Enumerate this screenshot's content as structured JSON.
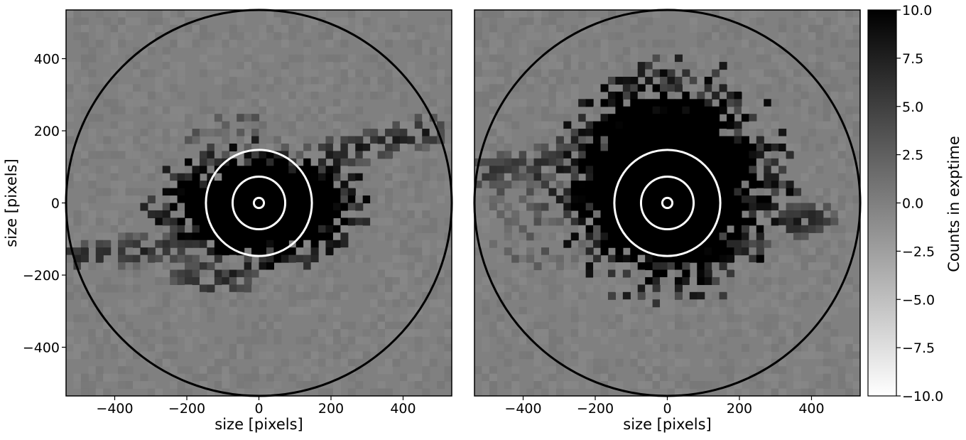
{
  "chart_data": {
    "type": "heatmap",
    "colormap": "gray_r",
    "panels": [
      {
        "xlabel": "size [pixels]",
        "ylabel": "size [pixels]",
        "xlim": [
          -535,
          535
        ],
        "ylim": [
          -535,
          535
        ],
        "xticks": [
          -400,
          -200,
          0,
          200,
          400
        ],
        "yticks": [
          -400,
          -200,
          0,
          200,
          400
        ],
        "xtick_labels": [
          "−400",
          "−200",
          "0",
          "200",
          "400"
        ],
        "ytick_labels": [
          "−400",
          "−200",
          "0",
          "200",
          "400"
        ],
        "background_value": 0,
        "saturated_core": {
          "center": [
            0,
            0
          ],
          "extent_x": [
            -260,
            280
          ],
          "extent_y": [
            -160,
            140
          ],
          "shape": "elongated along a diagonal streak toward upper right",
          "value": 10
        },
        "features": [
          {
            "type": "streak",
            "from": [
              150,
              120
            ],
            "to": [
              470,
              200
            ],
            "value": 7
          },
          {
            "type": "streak",
            "from": [
              -520,
              -150
            ],
            "to": [
              -200,
              -120
            ],
            "value": 6
          },
          {
            "type": "blob",
            "center": [
              -130,
              -210
            ],
            "size": [
              260,
              90
            ],
            "value": 5
          },
          {
            "type": "speckle",
            "center": [
              -60,
              150
            ],
            "size": [
              300,
              200
            ],
            "value": 2.5
          }
        ],
        "circles": [
          {
            "center": [
              0,
              0
            ],
            "radius": 535,
            "color": "black"
          },
          {
            "center": [
              0,
              0
            ],
            "radius": 147,
            "color": "white"
          },
          {
            "center": [
              0,
              0
            ],
            "radius": 73,
            "color": "white"
          },
          {
            "center": [
              0,
              0
            ],
            "radius": 14,
            "color": "white"
          }
        ]
      },
      {
        "xlabel": "size [pixels]",
        "xlim": [
          -535,
          535
        ],
        "ylim": [
          -535,
          535
        ],
        "xticks": [
          -400,
          -200,
          0,
          200,
          400
        ],
        "xtick_labels": [
          "−400",
          "−200",
          "0",
          "200",
          "400"
        ],
        "background_value": 0,
        "saturated_core": {
          "center": [
            0,
            0
          ],
          "extent_x": [
            -280,
            280
          ],
          "extent_y": [
            -220,
            340
          ],
          "shape": "roughly round blob",
          "value": 10
        },
        "features": [
          {
            "type": "streak",
            "from": [
              180,
              -100
            ],
            "to": [
              420,
              -40
            ],
            "value": 7
          },
          {
            "type": "streak",
            "from": [
              -520,
              80
            ],
            "to": [
              -200,
              140
            ],
            "value": 5
          },
          {
            "type": "speckle",
            "center": [
              -330,
              -30
            ],
            "size": [
              380,
              300
            ],
            "value": 2.5
          }
        ],
        "circles": [
          {
            "center": [
              0,
              0
            ],
            "radius": 535,
            "color": "black"
          },
          {
            "center": [
              0,
              0
            ],
            "radius": 147,
            "color": "white"
          },
          {
            "center": [
              0,
              0
            ],
            "radius": 73,
            "color": "white"
          },
          {
            "center": [
              0,
              0
            ],
            "radius": 14,
            "color": "white"
          }
        ]
      }
    ],
    "colorbar": {
      "label": "Counts in exptime",
      "range": [
        -10,
        10
      ],
      "ticks": [
        10.0,
        7.5,
        5.0,
        2.5,
        0.0,
        -2.5,
        -5.0,
        -7.5,
        -10.0
      ],
      "tick_labels": [
        "10.0",
        "7.5",
        "5.0",
        "2.5",
        "0.0",
        "−2.5",
        "−5.0",
        "−7.5",
        "−10.0"
      ],
      "colors": {
        "high": "#000000",
        "low": "#ffffff"
      }
    }
  }
}
